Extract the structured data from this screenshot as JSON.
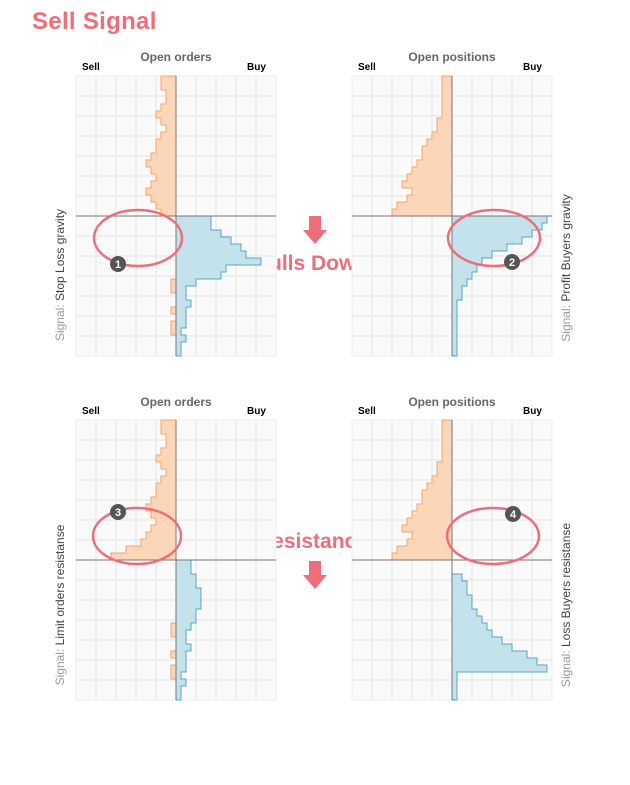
{
  "title": "Sell Signal",
  "callouts": {
    "top": "Pulls Down",
    "bottom": "Resistance"
  },
  "signal_prefix": "Signal:",
  "colors": {
    "sell": "#f5a469",
    "sell_fill": "#fcd6b8",
    "buy": "#57a5c1",
    "buy_fill": "#c3e2ec",
    "accent": "#ee6d7a",
    "grid": "#e4e4e4",
    "badge": "#555555"
  },
  "chart_data": [
    {
      "type": "bar",
      "orientation": "horizontal-mirrored",
      "title": "Open orders",
      "left_label": "Sell",
      "right_label": "Buy",
      "signal": "Stop Loss gravity",
      "badge": "1",
      "highlight_side": "buy",
      "highlight_rows": [
        8,
        11
      ],
      "bins": 40,
      "value_range": [
        0,
        10
      ],
      "series": [
        {
          "name": "Sell",
          "values": [
            1.5,
            1.5,
            1,
            1,
            1.5,
            2,
            1.5,
            1,
            1.5,
            2,
            2,
            2.5,
            3,
            2.5,
            2,
            2.5,
            3,
            2.5,
            2,
            1.5,
            0,
            0,
            0,
            0,
            0,
            0,
            0,
            0,
            0,
            0.5,
            0.5,
            0,
            0,
            0.5,
            0,
            0.5,
            0.5,
            0,
            0,
            0
          ]
        },
        {
          "name": "Buy",
          "values": [
            0,
            0,
            0,
            0,
            0,
            0,
            0,
            0,
            0,
            0,
            0,
            0,
            0,
            0,
            0,
            0,
            0,
            0,
            0,
            0,
            3.5,
            3.5,
            4.5,
            5.5,
            6.5,
            7,
            8.5,
            5,
            4.5,
            2,
            1,
            1,
            1.5,
            1,
            1,
            1,
            0.5,
            1,
            0.5,
            0.5
          ]
        }
      ]
    },
    {
      "type": "bar",
      "orientation": "horizontal-mirrored",
      "title": "Open positions",
      "left_label": "Sell",
      "right_label": "Buy",
      "signal": "Profit Buyers gravity",
      "badge": "2",
      "highlight_side": "sell",
      "highlight_rows": [
        1,
        11
      ],
      "bins": 40,
      "value_range": [
        0,
        10
      ],
      "series": [
        {
          "name": "Sell",
          "values": [
            1,
            1,
            1,
            1,
            1,
            1,
            1.5,
            1.5,
            2,
            2.5,
            3,
            3,
            3.5,
            4,
            4.5,
            5,
            4,
            4.5,
            5.5,
            6,
            0,
            0,
            0,
            0,
            0,
            0,
            0,
            0,
            0,
            0,
            0,
            0,
            0,
            0,
            0,
            0,
            0,
            0,
            0,
            0
          ]
        },
        {
          "name": "Buy",
          "values": [
            0,
            0,
            0,
            0,
            0,
            0,
            0,
            0,
            0,
            0,
            0,
            0,
            0,
            0,
            0,
            0,
            0,
            0,
            0,
            0,
            9.5,
            9,
            8,
            7,
            5.5,
            4,
            3,
            2.5,
            2,
            1.5,
            1,
            1,
            0.5,
            0.5,
            0.5,
            0.5,
            0.5,
            0.5,
            0.5,
            0.5
          ]
        }
      ]
    },
    {
      "type": "bar",
      "orientation": "horizontal-mirrored",
      "title": "Open orders",
      "left_label": "Sell",
      "right_label": "Buy",
      "signal": "Limit orders resistanse",
      "badge": "3",
      "highlight_side": "sell",
      "highlight_rows": [
        12,
        20
      ],
      "bins": 40,
      "value_range": [
        0,
        10
      ],
      "series": [
        {
          "name": "Sell",
          "values": [
            1.5,
            1.5,
            1,
            1,
            1.5,
            2,
            1.5,
            1,
            1.5,
            2,
            2,
            2.5,
            3,
            2.5,
            2,
            2.5,
            3,
            3.5,
            5,
            6.5,
            0,
            0,
            0,
            0,
            0,
            0,
            0,
            0,
            0,
            0.5,
            0.5,
            0,
            0,
            0.5,
            0,
            0.5,
            0.5,
            0,
            0,
            0
          ]
        },
        {
          "name": "Buy",
          "values": [
            0,
            0,
            0,
            0,
            0,
            0,
            0,
            0,
            0,
            0,
            0,
            0,
            0,
            0,
            0,
            0,
            0,
            0,
            0,
            0,
            1.5,
            1.5,
            2,
            2,
            2.5,
            2.5,
            2.5,
            2,
            2,
            1.5,
            1,
            1,
            1.5,
            1,
            1,
            1,
            0.5,
            1,
            0.5,
            0.5
          ]
        }
      ]
    },
    {
      "type": "bar",
      "orientation": "horizontal-mirrored",
      "title": "Open positions",
      "left_label": "Sell",
      "right_label": "Buy",
      "signal": "Loss Buyers resistanse",
      "badge": "4",
      "highlight_side": "buy",
      "highlight_rows": [
        12,
        20
      ],
      "bins": 40,
      "value_range": [
        0,
        10
      ],
      "series": [
        {
          "name": "Sell",
          "values": [
            1,
            1,
            1,
            1,
            1,
            1,
            1.5,
            1.5,
            2,
            2.5,
            3,
            3,
            3.5,
            4,
            4.5,
            5,
            4,
            4.5,
            5.5,
            6,
            0,
            0,
            0,
            0,
            0,
            0,
            0,
            0,
            0,
            0,
            0,
            0,
            0,
            0,
            0,
            0,
            0,
            0,
            0,
            0
          ]
        },
        {
          "name": "Buy",
          "values": [
            0,
            0,
            0,
            0,
            0,
            0,
            0,
            0,
            0,
            0,
            0,
            0,
            0,
            0,
            0,
            0,
            0,
            0,
            0,
            0,
            0,
            0,
            1,
            1.5,
            1.5,
            2,
            2,
            2.5,
            3,
            3.5,
            4,
            5,
            6,
            7.5,
            8.5,
            9.5,
            0.5,
            0.5,
            0.5,
            0.5
          ]
        }
      ]
    }
  ]
}
